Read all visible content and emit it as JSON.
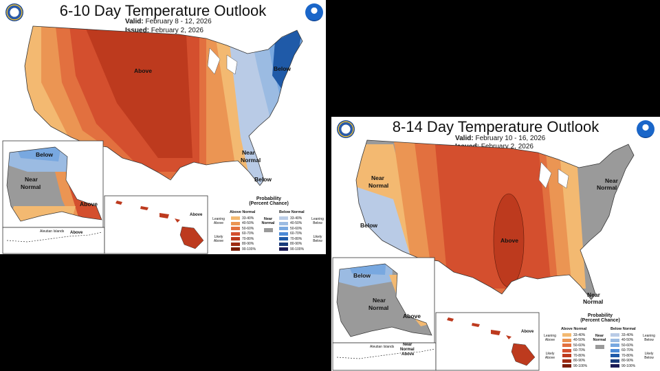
{
  "panel1": {
    "title": "6-10 Day Temperature Outlook",
    "valid_label": "Valid:",
    "valid_value": "February 8 - 12, 2026",
    "issued_label": "Issued:",
    "issued_value": "February 2, 2026",
    "map_labels": {
      "above_main": "Above",
      "below_main": "Below",
      "near_normal_1": "Near",
      "near_normal_2": "Normal",
      "below_se": "Below",
      "ak_below": "Below",
      "ak_near_1": "Near",
      "ak_near_2": "Normal",
      "ak_above": "Above",
      "aleutian": "Aleutian Islands",
      "aleutian_above": "Above",
      "hi_above": "Above"
    }
  },
  "panel2": {
    "title": "8-14 Day Temperature Outlook",
    "valid_label": "Valid:",
    "valid_value": "February 10 - 16, 2026",
    "issued_label": "Issued:",
    "issued_value": "February 2, 2026",
    "map_labels": {
      "near_nw_1": "Near",
      "near_nw_2": "Normal",
      "below_ca": "Below",
      "above_central": "Above",
      "near_ne_1": "Near",
      "near_ne_2": "Normal",
      "near_fl_1": "Near",
      "near_fl_2": "Normal",
      "ak_below": "Below",
      "ak_near_1": "Near",
      "ak_near_2": "Normal",
      "ak_above": "Above",
      "aleutian": "Aleutian Islands",
      "aleutian_near_1": "Near",
      "aleutian_near_2": "Normal",
      "aleutian_above": "Above",
      "hi_above": "Above"
    }
  },
  "legend": {
    "title_1": "Probability",
    "title_2": "(Percent Chance)",
    "above_normal": "Above Normal",
    "below_normal": "Below Normal",
    "near_1": "Near",
    "near_2": "Normal",
    "leaning_above_1": "Leaning",
    "leaning_above_2": "Above",
    "likely_above_1": "Likely",
    "likely_above_2": "Above",
    "leaning_below_1": "Leaning",
    "leaning_below_2": "Below",
    "likely_below_1": "Likely",
    "likely_below_2": "Below",
    "ranges": [
      "33-40%",
      "40-50%",
      "50-60%",
      "60-70%",
      "70-80%",
      "80-90%",
      "90-100%"
    ],
    "above_colors": [
      "#f3b971",
      "#eb9553",
      "#e2703f",
      "#d44f2e",
      "#bd3a1e",
      "#9e2a12",
      "#7a1d08"
    ],
    "below_colors": [
      "#b9cbe6",
      "#9bbbe2",
      "#78a8e0",
      "#4b8ad7",
      "#1f5aa8",
      "#183a7a",
      "#1a1a55"
    ],
    "near_color": "#9a9a9a"
  }
}
